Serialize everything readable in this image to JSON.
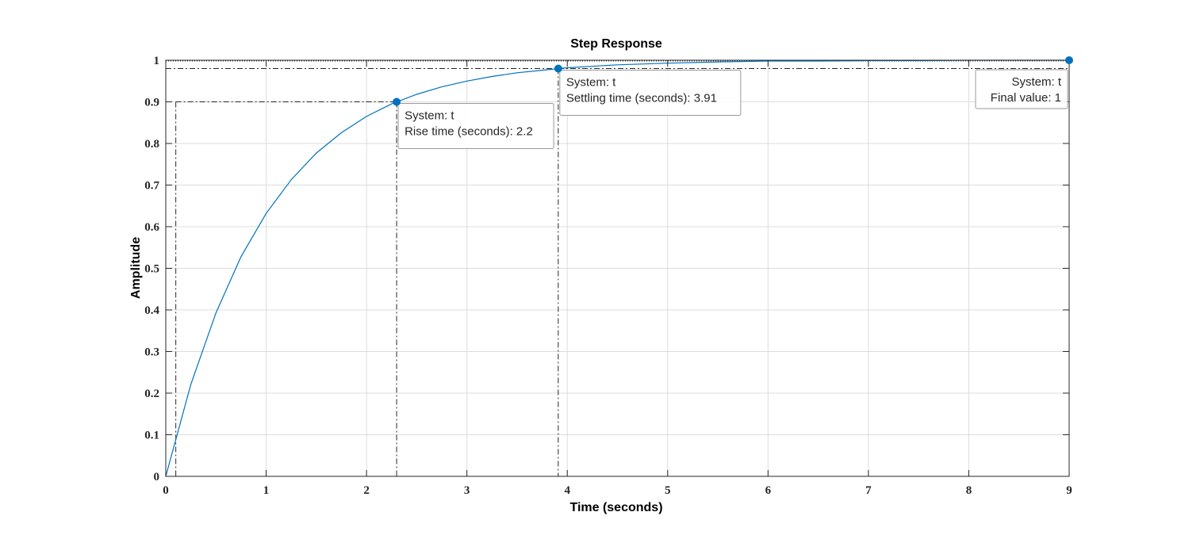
{
  "chart_data": {
    "type": "line",
    "title": "Step Response",
    "xlabel": "Time (seconds)",
    "ylabel": "Amplitude",
    "xlim": [
      0,
      9
    ],
    "ylim": [
      0,
      1
    ],
    "xticks": [
      0,
      1,
      2,
      3,
      4,
      5,
      6,
      7,
      8,
      9
    ],
    "yticks": [
      0,
      0.1,
      0.2,
      0.3,
      0.4,
      0.5,
      0.6,
      0.7,
      0.8,
      0.9,
      1
    ],
    "xtick_labels": [
      "0",
      "1",
      "2",
      "3",
      "4",
      "5",
      "6",
      "7",
      "8",
      "9"
    ],
    "ytick_labels": [
      "0",
      "0.1",
      "0.2",
      "0.3",
      "0.4",
      "0.5",
      "0.6",
      "0.7",
      "0.8",
      "0.9",
      "1"
    ],
    "grid": true,
    "line_color": "#0072BD",
    "series": [
      {
        "x": [
          0,
          0.25,
          0.5,
          0.75,
          1,
          1.25,
          1.5,
          1.75,
          2,
          2.25,
          2.5,
          2.75,
          3,
          3.25,
          3.5,
          3.75,
          4,
          4.5,
          5,
          5.5,
          6,
          6.5,
          7,
          7.5,
          8,
          8.5,
          9
        ],
        "values": [
          0,
          0.221,
          0.393,
          0.528,
          0.632,
          0.713,
          0.777,
          0.826,
          0.865,
          0.895,
          0.918,
          0.936,
          0.95,
          0.961,
          0.97,
          0.976,
          0.982,
          0.989,
          0.993,
          0.996,
          0.998,
          0.998,
          0.999,
          0.999,
          1.0,
          1.0,
          1.0
        ]
      }
    ],
    "markers": [
      {
        "x": 2.3,
        "y": 0.9,
        "lines": [
          "System: t",
          "Rise time (seconds): 2.2"
        ]
      },
      {
        "x": 3.91,
        "y": 0.98,
        "lines": [
          "System: t",
          "Settling time (seconds): 3.91"
        ]
      },
      {
        "x": 9,
        "y": 1,
        "lines": [
          "System: t",
          "Final value: 1"
        ]
      }
    ],
    "reference_lines": {
      "rise_start_x": 0.1,
      "rise_y": 0.9,
      "settle_y": 0.98,
      "final_y": 1
    }
  }
}
